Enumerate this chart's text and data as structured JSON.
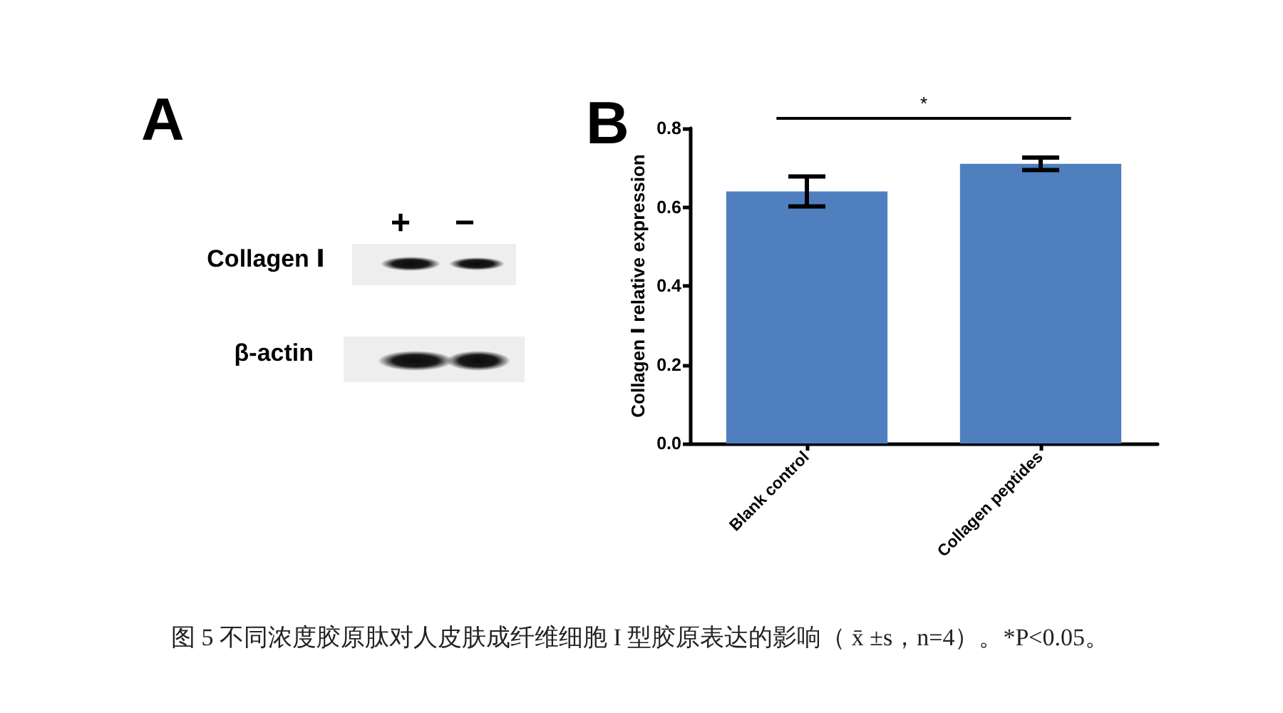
{
  "chart_data": [
    {
      "type": "other",
      "title": "A",
      "annotations": [
        "+",
        "−",
        "Collagen Ⅰ",
        "β-actin"
      ]
    },
    {
      "type": "bar",
      "title": "B",
      "ylabel": "Collagen Ⅰ relative expression",
      "categories": [
        "Blank control",
        "Collagen peptides"
      ],
      "values": [
        0.64,
        0.71
      ],
      "errors": [
        0.038,
        0.016
      ],
      "color": "#4f7fbf",
      "ylim": [
        0,
        0.8
      ],
      "yticks": [
        {
          "value": 0,
          "label": "0.0"
        },
        0.2,
        0.4,
        0.6,
        0.8
      ],
      "grid": false,
      "annotations": [
        "*",
        "图 5 不同浓度胶原肽对人皮肤成纤维细胞 I 型胶原表达的影响（ x̄ ±s，n=4）。*P<0.05。"
      ]
    }
  ]
}
